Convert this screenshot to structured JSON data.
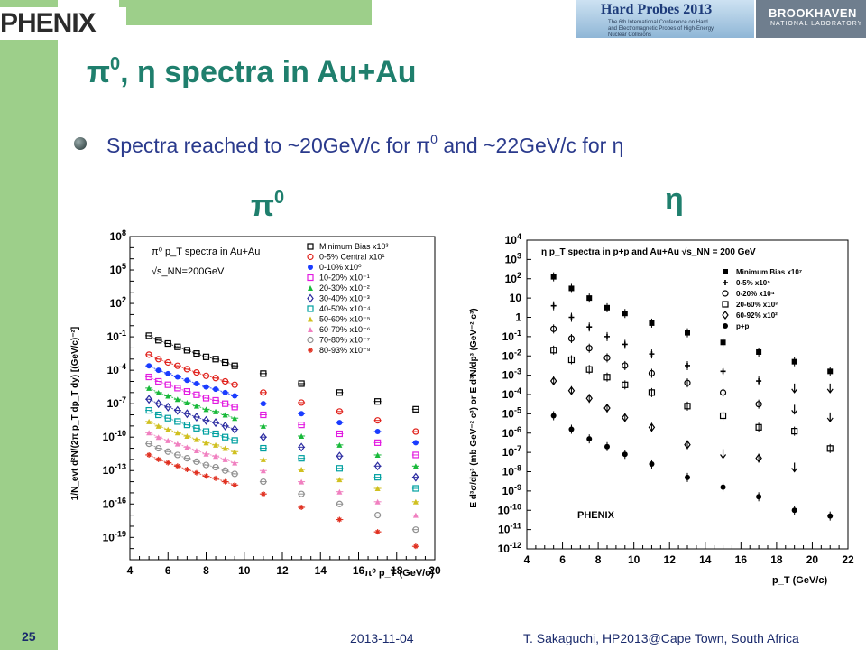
{
  "header": {
    "logo_text": "PHENIX",
    "conf_logo_title": "Hard Probes 2013",
    "conf_logo_sub": "The 6th International Conference on Hard and Electromagnetic Probes of High-Energy Nuclear Collisions",
    "lab_logo_title": "BROOKHAVEN",
    "lab_logo_sub": "NATIONAL LABORATORY"
  },
  "slide": {
    "title_pi": "π",
    "title_pi_sup": "0",
    "title_rest": ", η spectra in Au+Au",
    "bullet_a": "Spectra reached to ~20GeV/c for π",
    "bullet_sup": "0",
    "bullet_b": " and ~22GeV/c for η",
    "label_pi": "π",
    "label_pi_sup": "0",
    "label_eta": "η"
  },
  "footer": {
    "page": "25",
    "date": "2013-11-04",
    "author": "T. Sakaguchi, HP2013@Cape Town, South Africa"
  },
  "chart_data": [
    {
      "type": "scatter",
      "title": "π⁰ p_T spectra in Au+Au",
      "note": "√s_NN=200GeV",
      "xlabel": "π⁰ p_T (GeV/c)",
      "ylabel": "1/N_evt d²N/(2π p_T dp_T dy) [(GeV/c)⁻²]",
      "xlim": [
        4,
        20
      ],
      "ylim_log10": [
        -21,
        8
      ],
      "x_ticks": [
        4,
        6,
        8,
        10,
        12,
        14,
        16,
        18,
        20
      ],
      "y_tick_labels": [
        "10^8",
        "10^5",
        "10^2",
        "10^-1",
        "10^-4",
        "10^-7",
        "10^-10",
        "10^-13",
        "10^-16",
        "10^-19"
      ],
      "x": [
        5.0,
        5.5,
        6.0,
        6.5,
        7.0,
        7.5,
        8.0,
        8.5,
        9.0,
        9.5,
        11,
        13,
        15,
        17,
        19
      ],
      "series": [
        {
          "name": "Minimum Bias x10³",
          "color": "#000000",
          "marker": "square",
          "log10_values": [
            -0.9,
            -1.3,
            -1.6,
            -1.9,
            -2.2,
            -2.5,
            -2.8,
            -3.0,
            -3.3,
            -3.6,
            -4.3,
            -5.2,
            -6.0,
            -6.8,
            -7.5
          ]
        },
        {
          "name": "0-5% Central x10¹",
          "color": "#e0201a",
          "marker": "circle",
          "log10_values": [
            -2.6,
            -3.0,
            -3.3,
            -3.6,
            -3.9,
            -4.2,
            -4.5,
            -4.7,
            -5.0,
            -5.3,
            -6.0,
            -6.9,
            -7.7,
            -8.5,
            -9.5
          ]
        },
        {
          "name": "0-10% x10⁰",
          "color": "#1a3cff",
          "marker": "dot",
          "log10_values": [
            -3.6,
            -4.0,
            -4.3,
            -4.6,
            -4.9,
            -5.2,
            -5.5,
            -5.7,
            -6.0,
            -6.3,
            -7.0,
            -7.9,
            -8.7,
            -9.5,
            -10.5
          ]
        },
        {
          "name": "10-20% x10⁻¹",
          "color": "#e21be0",
          "marker": "square",
          "log10_values": [
            -4.6,
            -5.0,
            -5.3,
            -5.6,
            -5.9,
            -6.2,
            -6.5,
            -6.7,
            -7.0,
            -7.3,
            -8.0,
            -8.9,
            -9.7,
            -10.5,
            -11.6
          ]
        },
        {
          "name": "20-30% x10⁻²",
          "color": "#18b93a",
          "marker": "triangle",
          "log10_values": [
            -5.6,
            -6.0,
            -6.3,
            -6.6,
            -6.9,
            -7.2,
            -7.5,
            -7.7,
            -8.0,
            -8.3,
            -9.0,
            -9.9,
            -10.7,
            -11.6,
            -12.6
          ]
        },
        {
          "name": "30-40% x10⁻³",
          "color": "#2a2aa0",
          "marker": "diamond",
          "log10_values": [
            -6.6,
            -7.0,
            -7.3,
            -7.6,
            -7.9,
            -8.2,
            -8.5,
            -8.7,
            -9.0,
            -9.3,
            -10.0,
            -10.9,
            -11.7,
            -12.6,
            -13.6
          ]
        },
        {
          "name": "40-50% x10⁻⁴",
          "color": "#00a0a0",
          "marker": "square",
          "log10_values": [
            -7.6,
            -8.0,
            -8.3,
            -8.6,
            -8.9,
            -9.2,
            -9.5,
            -9.7,
            -10.0,
            -10.3,
            -11.0,
            -11.9,
            -12.8,
            -13.6,
            -14.6
          ]
        },
        {
          "name": "50-60% x10⁻⁵",
          "color": "#d0c020",
          "marker": "triangle",
          "log10_values": [
            -8.6,
            -9.0,
            -9.3,
            -9.6,
            -9.9,
            -10.2,
            -10.5,
            -10.7,
            -11.0,
            -11.3,
            -12.0,
            -12.9,
            -13.8,
            -14.6,
            -15.8
          ]
        },
        {
          "name": "60-70% x10⁻⁶",
          "color": "#f080c0",
          "marker": "triangle",
          "log10_values": [
            -9.6,
            -10.0,
            -10.3,
            -10.6,
            -10.9,
            -11.2,
            -11.5,
            -11.7,
            -12.0,
            -12.3,
            -13.0,
            -14.0,
            -14.9,
            -15.8,
            -17.0
          ]
        },
        {
          "name": "70-80% x10⁻⁷",
          "color": "#909090",
          "marker": "circle",
          "log10_values": [
            -10.6,
            -11.0,
            -11.3,
            -11.6,
            -11.9,
            -12.2,
            -12.5,
            -12.7,
            -13.0,
            -13.3,
            -14.0,
            -15.1,
            -16.0,
            -17.0,
            -18.3
          ]
        },
        {
          "name": "80-93% x10⁻⁸",
          "color": "#e03020",
          "marker": "star",
          "log10_values": [
            -11.6,
            -12.0,
            -12.3,
            -12.6,
            -12.9,
            -13.2,
            -13.5,
            -13.7,
            -14.0,
            -14.3,
            -15.1,
            -16.3,
            -17.4,
            -18.5,
            -19.8
          ]
        }
      ]
    },
    {
      "type": "scatter",
      "title": "η p_T spectra in p+p and Au+Au √s_NN = 200 GeV",
      "xlabel": "p_T (GeV/c)",
      "ylabel": "E d³σ/dp³ (mb GeV⁻² c³) or E d³N/dp³ (GeV⁻² c³)",
      "annotation": "PHENIX",
      "xlim": [
        4,
        22
      ],
      "ylim_log10": [
        -12,
        4
      ],
      "x_ticks": [
        4,
        6,
        8,
        10,
        12,
        14,
        16,
        18,
        20,
        22
      ],
      "y_tick_labels": [
        "10^4",
        "10^3",
        "10^2",
        "10",
        "1",
        "10^-1",
        "10^-2",
        "10^-3",
        "10^-4",
        "10^-5",
        "10^-6",
        "10^-7",
        "10^-8",
        "10^-9",
        "10^-10",
        "10^-11",
        "10^-12"
      ],
      "series": [
        {
          "name": "Minimum Bias x10⁷",
          "color": "#000000",
          "marker": "filled-square",
          "x": [
            5.5,
            6.5,
            7.5,
            8.5,
            9.5,
            11,
            13,
            15,
            17,
            19,
            21
          ],
          "log10_values": [
            2.1,
            1.5,
            1.0,
            0.5,
            0.2,
            -0.3,
            -0.8,
            -1.3,
            -1.8,
            -2.3,
            -2.8
          ]
        },
        {
          "name": "0-5% x10⁵",
          "color": "#000000",
          "marker": "cross",
          "x": [
            5.5,
            6.5,
            7.5,
            8.5,
            9.5,
            11,
            13,
            15,
            17
          ],
          "log10_values": [
            0.6,
            0.0,
            -0.5,
            -1.0,
            -1.4,
            -1.9,
            -2.5,
            -2.8,
            -3.3
          ]
        },
        {
          "name": "0-20% x10⁴",
          "color": "#000000",
          "marker": "open-circle",
          "x": [
            5.5,
            6.5,
            7.5,
            8.5,
            9.5,
            11,
            13,
            15,
            17
          ],
          "log10_values": [
            -0.6,
            -1.1,
            -1.6,
            -2.1,
            -2.5,
            -2.9,
            -3.4,
            -3.9,
            -4.5
          ]
        },
        {
          "name": "20-60% x10³",
          "color": "#000000",
          "marker": "open-square",
          "x": [
            5.5,
            6.5,
            7.5,
            8.5,
            9.5,
            11,
            13,
            15,
            17,
            19,
            21
          ],
          "log10_values": [
            -1.7,
            -2.2,
            -2.7,
            -3.1,
            -3.5,
            -3.9,
            -4.6,
            -5.1,
            -5.7,
            -5.9,
            -6.8
          ]
        },
        {
          "name": "60-92% x10²",
          "color": "#000000",
          "marker": "open-diamond",
          "x": [
            5.5,
            6.5,
            7.5,
            8.5,
            9.5,
            11,
            13,
            17
          ],
          "log10_values": [
            -3.3,
            -3.8,
            -4.2,
            -4.7,
            -5.2,
            -5.7,
            -6.6,
            -7.3
          ]
        },
        {
          "name": "p+p",
          "color": "#000000",
          "marker": "filled-circle",
          "x": [
            5.5,
            6.5,
            7.5,
            8.5,
            9.5,
            11,
            13,
            15,
            17,
            19,
            21
          ],
          "log10_values": [
            -5.1,
            -5.8,
            -6.3,
            -6.7,
            -7.1,
            -7.6,
            -8.3,
            -8.8,
            -9.3,
            -10.0,
            -10.3
          ]
        }
      ],
      "upper_limits": [
        {
          "x": 15,
          "log10_value": -7.3
        },
        {
          "x": 19,
          "log10_value": -3.9
        },
        {
          "x": 19,
          "log10_value": -5.0
        },
        {
          "x": 19,
          "log10_value": -8.0
        },
        {
          "x": 21,
          "log10_value": -3.9
        },
        {
          "x": 21,
          "log10_value": -5.4
        }
      ]
    }
  ]
}
